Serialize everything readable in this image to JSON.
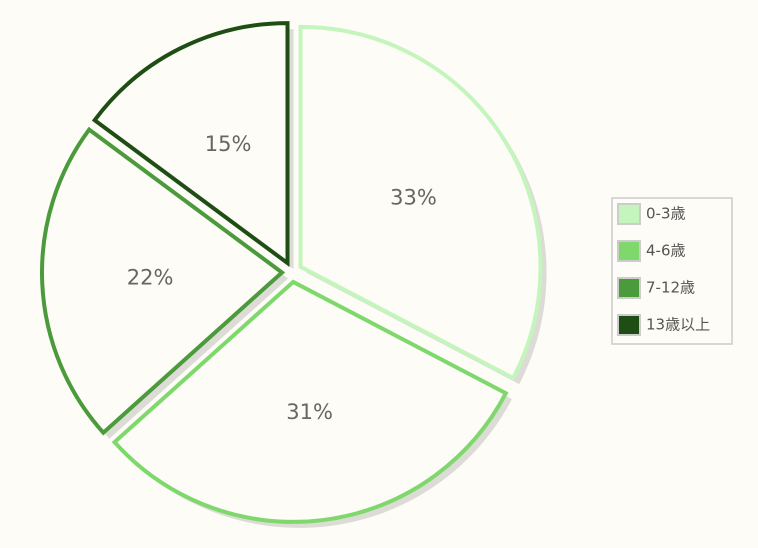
{
  "chart_data": {
    "type": "pie",
    "categories": [
      "0-3歳",
      "4-6歳",
      "7-12歳",
      "13歳以上"
    ],
    "values": [
      33,
      31,
      22,
      15
    ],
    "value_labels": [
      "33%",
      "31%",
      "22%",
      "15%"
    ],
    "colors": [
      "#c4f5bd",
      "#7ed86c",
      "#4b9a3b",
      "#1f4e15"
    ],
    "legend": "right"
  }
}
